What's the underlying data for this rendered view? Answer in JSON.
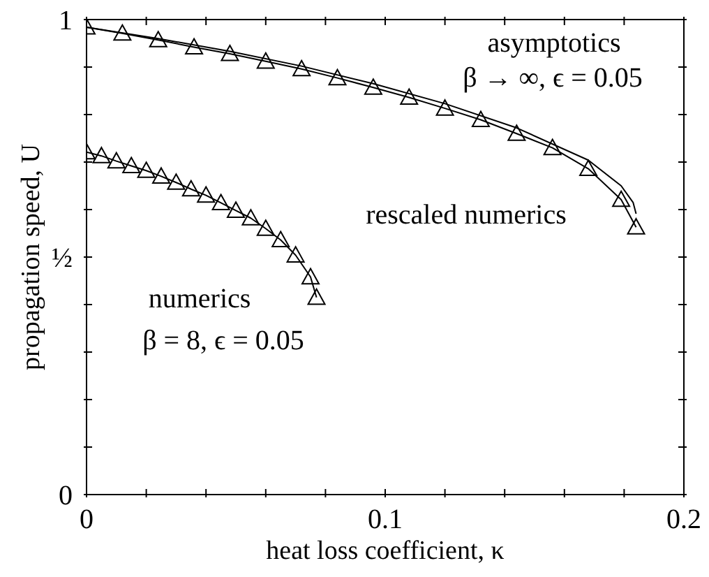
{
  "chart_data": {
    "type": "line",
    "xlabel": "heat loss coefficient, κ",
    "ylabel": "propagation speed, U",
    "xlim": [
      0,
      0.2
    ],
    "ylim": [
      0,
      1
    ],
    "xticks": [
      0,
      {
        "value": 0.02,
        "label": null
      },
      {
        "value": 0.04,
        "label": null
      },
      {
        "value": 0.06,
        "label": null
      },
      {
        "value": 0.08,
        "label": null
      },
      0.1,
      {
        "value": 0.12,
        "label": null
      },
      {
        "value": 0.14,
        "label": null
      },
      {
        "value": 0.16,
        "label": null
      },
      {
        "value": 0.18,
        "label": null
      },
      0.2
    ],
    "yticks": [
      0,
      {
        "value": 0.1,
        "label": null
      },
      {
        "value": 0.2,
        "label": null
      },
      {
        "value": 0.3,
        "label": null
      },
      {
        "value": 0.4,
        "label": null
      },
      {
        "value": 0.5,
        "label": "½"
      },
      {
        "value": 0.6,
        "label": null
      },
      {
        "value": 0.7,
        "label": null
      },
      {
        "value": 0.8,
        "label": null
      },
      {
        "value": 0.9,
        "label": null
      },
      1
    ],
    "line_style": "solid",
    "series": [
      {
        "name": "asymptotics",
        "color": "#000000",
        "marker": "none",
        "x": [
          0,
          0.024,
          0.048,
          0.072,
          0.096,
          0.12,
          0.144,
          0.168,
          0.179,
          0.183,
          0.184
        ],
        "values": [
          0.984,
          0.96,
          0.933,
          0.902,
          0.865,
          0.823,
          0.772,
          0.704,
          0.65,
          0.615,
          0.591
        ]
      },
      {
        "name": "rescaled numerics",
        "color": "#000000",
        "marker": "triangle",
        "x": [
          0,
          0.012,
          0.024,
          0.036,
          0.048,
          0.06,
          0.072,
          0.084,
          0.096,
          0.108,
          0.12,
          0.132,
          0.144,
          0.156,
          0.168,
          0.179,
          0.184
        ],
        "values": [
          0.984,
          0.971,
          0.957,
          0.942,
          0.928,
          0.912,
          0.896,
          0.877,
          0.857,
          0.836,
          0.813,
          0.789,
          0.76,
          0.73,
          0.686,
          0.621,
          0.563
        ]
      },
      {
        "name": "numerics",
        "color": "#000000",
        "marker": "triangle",
        "x": [
          0,
          0.005,
          0.01,
          0.015,
          0.02,
          0.025,
          0.03,
          0.035,
          0.04,
          0.045,
          0.05,
          0.055,
          0.06,
          0.065,
          0.07,
          0.075,
          0.077
        ],
        "values": [
          0.721,
          0.713,
          0.702,
          0.692,
          0.682,
          0.67,
          0.657,
          0.643,
          0.63,
          0.614,
          0.598,
          0.582,
          0.56,
          0.536,
          0.504,
          0.458,
          0.415
        ]
      }
    ],
    "annotations": [
      "β → ∞, ϵ = 0.05",
      "β = 8, ϵ = 0.05"
    ]
  }
}
